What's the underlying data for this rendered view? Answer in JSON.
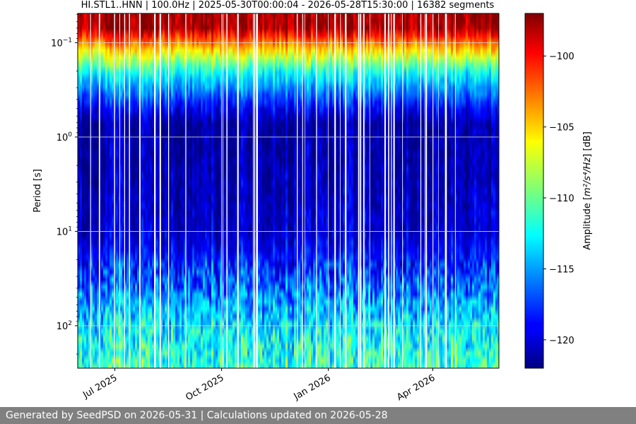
{
  "chart_data": {
    "type": "heatmap",
    "title": "HI.STL1..HNN | 100.0Hz | 2025-05-30T00:00:04 - 2026-05-28T15:30:00 | 16382 segments",
    "ylabel": "Period [s]",
    "xlabel": "",
    "y_scale": "log",
    "y_inverted": true,
    "y_ticks": [
      {
        "value": 0.1,
        "base": "10",
        "exp": "−1"
      },
      {
        "value": 1,
        "base": "10",
        "exp": "0"
      },
      {
        "value": 10,
        "base": "10",
        "exp": "1"
      },
      {
        "value": 100,
        "base": "10",
        "exp": "2"
      }
    ],
    "x_range": [
      "2025-05-30",
      "2026-05-28"
    ],
    "x_ticks": [
      {
        "date": "2025-07-01",
        "label": "Jul 2025"
      },
      {
        "date": "2025-10-01",
        "label": "Oct 2025"
      },
      {
        "date": "2026-01-01",
        "label": "Jan 2026"
      },
      {
        "date": "2026-04-01",
        "label": "Apr 2026"
      }
    ],
    "grid": true,
    "colorbar": {
      "label_prefix": "Amplitude [",
      "label_units": "m²/s⁴/Hz",
      "label_suffix": "] [dB]",
      "ticks": [
        -100,
        -105,
        -110,
        -115,
        -120
      ],
      "tick_labels": [
        "−100",
        "−105",
        "−110",
        "−115",
        "−120"
      ],
      "range": [
        -122,
        -97
      ],
      "colormap": "jet"
    },
    "period_profile": [
      {
        "period": 0.02,
        "amplitude_db": -98
      },
      {
        "period": 0.07,
        "amplitude_db": -98
      },
      {
        "period": 0.1,
        "amplitude_db": -103
      },
      {
        "period": 0.2,
        "amplitude_db": -112
      },
      {
        "period": 0.45,
        "amplitude_db": -118
      },
      {
        "period": 0.7,
        "amplitude_db": -121
      },
      {
        "period": 10,
        "amplitude_db": -120
      },
      {
        "period": 30,
        "amplitude_db": -117
      },
      {
        "period": 100,
        "amplitude_db": -113
      },
      {
        "period": 300,
        "amplitude_db": -111
      }
    ]
  },
  "footer": {
    "text": "Generated by SeedPSD on 2026-05-31 | Calculations updated on 2026-05-28"
  }
}
